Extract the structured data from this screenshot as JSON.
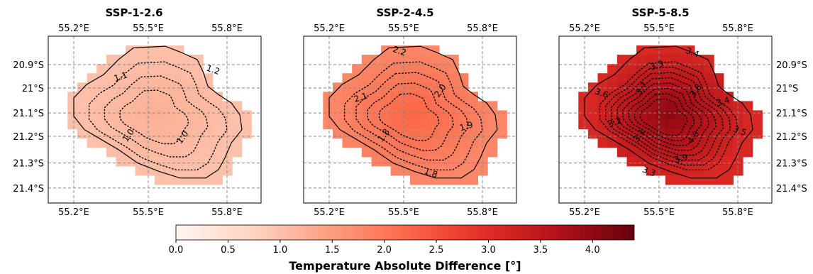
{
  "chart_data": {
    "type": "heatmap",
    "colorbar": {
      "label": "Temperature Absolute Difference [°]",
      "ticks": [
        "0.0",
        "0.5",
        "1.0",
        "1.5",
        "2.0",
        "2.5",
        "3.0",
        "3.5",
        "4.0"
      ],
      "range": [
        0.0,
        4.4
      ],
      "colormap": [
        "#fff5f0",
        "#fdd4c2",
        "#fca082",
        "#fb6a4a",
        "#e32f27",
        "#b11218",
        "#67000d"
      ]
    },
    "lon_ticks": [
      "55.2°E",
      "55.5°E",
      "55.8°E"
    ],
    "lat_ticks": [
      "20.9°S",
      "21°S",
      "21.1°S",
      "21.2°S",
      "21.3°S",
      "21.4°S"
    ],
    "grid": true,
    "panels": [
      {
        "title": "SSP-1-2.6",
        "base_value": 1.0,
        "peak_value": 1.25,
        "top_lon_labels": true,
        "bottom_lon_labels": true,
        "left_lat_labels": true,
        "right_lat_labels": false,
        "contour_labels": [
          "1.0",
          "1.1",
          "1.2",
          "1.0"
        ]
      },
      {
        "title": "SSP-2-4.5",
        "base_value": 1.8,
        "peak_value": 2.25,
        "top_lon_labels": true,
        "bottom_lon_labels": true,
        "left_lat_labels": false,
        "right_lat_labels": false,
        "contour_labels": [
          "1.8",
          "2.1",
          "2.2",
          "2.0",
          "1.9",
          "1.8"
        ]
      },
      {
        "title": "SSP-5-8.5",
        "base_value": 3.1,
        "peak_value": 4.05,
        "top_lon_labels": true,
        "bottom_lon_labels": true,
        "left_lat_labels": false,
        "right_lat_labels": true,
        "contour_labels": [
          "3.1",
          "3.2",
          "3.6",
          "3.7",
          "3.3",
          "3.4",
          "3.8",
          "3.4",
          "3.5",
          "4.0",
          "3.9",
          "3.3"
        ]
      }
    ]
  }
}
